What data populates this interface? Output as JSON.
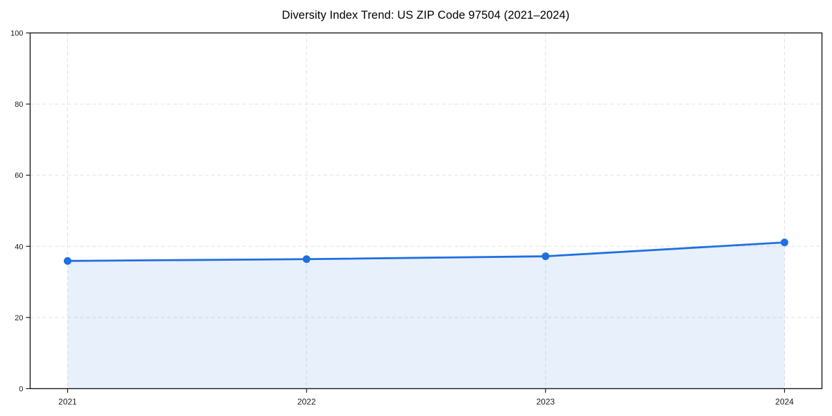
{
  "chart_data": {
    "type": "line",
    "title": "Diversity Index Trend: US ZIP Code 97504 (2021–2024)",
    "x": [
      2021,
      2022,
      2023,
      2024
    ],
    "xtick_labels": [
      "2021",
      "2022",
      "2023",
      "2024"
    ],
    "series": [
      {
        "name": "Diversity Index",
        "values": [
          35.9,
          36.4,
          37.2,
          41.1
        ]
      }
    ],
    "xlabel": "",
    "ylabel": "",
    "ylim": [
      0,
      100
    ],
    "yticks": [
      0,
      20,
      40,
      60,
      80,
      100
    ],
    "grid": true,
    "grid_style": "dashed",
    "legend": "none",
    "marker": "circle",
    "area_fill": true,
    "colors": {
      "line": "#1f6fe0",
      "area_fill": "rgba(31,111,224,0.10)",
      "grid": "#e0e0e0",
      "axis": "#1a1a1a",
      "tick_label": "#1a1a1a",
      "title": "#000000",
      "background": "#ffffff"
    }
  }
}
